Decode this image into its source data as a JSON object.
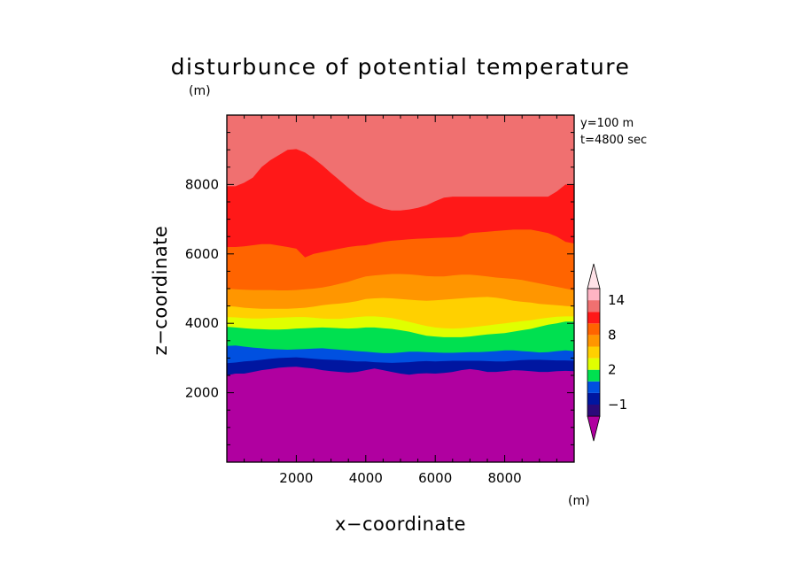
{
  "chart_data": {
    "type": "heatmap",
    "subtype": "filled-contour",
    "title": "disturbunce of potential temperature",
    "title_unit": "(m)",
    "xlabel": "x−coordinate",
    "ylabel": "z−coordinate",
    "annotations": [
      "y=100 m",
      "t=4800 sec"
    ],
    "xlim": [
      0,
      10000
    ],
    "ylim": [
      0,
      10000
    ],
    "x_ticks": [
      2000,
      4000,
      6000,
      8000
    ],
    "y_ticks": [
      2000,
      4000,
      6000,
      8000
    ],
    "colorbar": {
      "unit": "(m)",
      "levels": [
        -2,
        -1,
        0,
        1,
        2,
        4,
        6,
        8,
        10,
        12,
        14,
        16
      ],
      "colors": [
        "#b000a0",
        "#2b0a7a",
        "#0016a0",
        "#0050e0",
        "#00e050",
        "#e0ff00",
        "#ffd000",
        "#ff9600",
        "#ff6400",
        "#ff1818",
        "#f07070",
        "#ffb4c4",
        "#ffe2e8"
      ],
      "labeled_ticks": [
        -1,
        2,
        8,
        14
      ],
      "extend": "both"
    },
    "contour_x": [
      0,
      250,
      500,
      750,
      1000,
      1250,
      1500,
      1750,
      2000,
      2250,
      2500,
      2750,
      3000,
      3250,
      3500,
      3750,
      4000,
      4250,
      4500,
      4750,
      5000,
      5250,
      5500,
      5750,
      6000,
      6250,
      6500,
      6750,
      7000,
      7250,
      7500,
      7750,
      8000,
      8250,
      8500,
      8750,
      9000,
      9250,
      9500,
      9750,
      10000
    ],
    "band_boundaries": [
      {
        "below": -2,
        "above": -1,
        "z": [
          2500,
          2550,
          2550,
          2600,
          2650,
          2680,
          2720,
          2740,
          2750,
          2720,
          2700,
          2650,
          2620,
          2600,
          2580,
          2600,
          2650,
          2700,
          2650,
          2600,
          2550,
          2520,
          2550,
          2560,
          2550,
          2570,
          2600,
          2650,
          2680,
          2650,
          2600,
          2600,
          2620,
          2650,
          2640,
          2620,
          2600,
          2600,
          2620,
          2630,
          2620
        ]
      },
      {
        "below": -1,
        "above": 0,
        "z": [
          2850,
          2870,
          2900,
          2920,
          2950,
          2980,
          3000,
          3010,
          3020,
          3000,
          2980,
          2960,
          2950,
          2940,
          2920,
          2900,
          2900,
          2880,
          2870,
          2860,
          2870,
          2880,
          2900,
          2910,
          2900,
          2910,
          2920,
          2920,
          2920,
          2920,
          2910,
          2900,
          2900,
          2920,
          2940,
          2950,
          2950,
          2940,
          2930,
          2930,
          2920
        ]
      },
      {
        "below": 0,
        "above": 1,
        "z": [
          3350,
          3360,
          3330,
          3300,
          3280,
          3260,
          3250,
          3240,
          3250,
          3260,
          3270,
          3280,
          3260,
          3240,
          3220,
          3200,
          3180,
          3160,
          3140,
          3140,
          3160,
          3180,
          3180,
          3170,
          3160,
          3150,
          3150,
          3160,
          3170,
          3170,
          3180,
          3200,
          3220,
          3220,
          3200,
          3180,
          3160,
          3170,
          3200,
          3220,
          3200
        ]
      },
      {
        "below": 1,
        "above": 2,
        "z": [
          3900,
          3880,
          3860,
          3840,
          3830,
          3820,
          3820,
          3830,
          3850,
          3860,
          3870,
          3880,
          3870,
          3860,
          3850,
          3860,
          3880,
          3880,
          3860,
          3840,
          3800,
          3760,
          3700,
          3640,
          3620,
          3600,
          3600,
          3600,
          3620,
          3650,
          3680,
          3700,
          3720,
          3760,
          3800,
          3840,
          3900,
          3960,
          4000,
          4050,
          4050
        ]
      },
      {
        "below": 2,
        "above": 4,
        "z": [
          4180,
          4170,
          4150,
          4140,
          4140,
          4150,
          4160,
          4170,
          4180,
          4180,
          4160,
          4140,
          4130,
          4130,
          4150,
          4180,
          4200,
          4200,
          4180,
          4150,
          4100,
          4040,
          3980,
          3920,
          3880,
          3860,
          3850,
          3860,
          3880,
          3910,
          3940,
          3970,
          4000,
          4030,
          4060,
          4090,
          4130,
          4160,
          4190,
          4200,
          4200
        ]
      },
      {
        "below": 4,
        "above": 6,
        "z": [
          4500,
          4480,
          4450,
          4430,
          4420,
          4420,
          4420,
          4420,
          4430,
          4450,
          4480,
          4520,
          4550,
          4570,
          4600,
          4640,
          4700,
          4720,
          4730,
          4720,
          4700,
          4680,
          4660,
          4650,
          4660,
          4680,
          4700,
          4720,
          4740,
          4750,
          4760,
          4740,
          4700,
          4650,
          4620,
          4600,
          4560,
          4540,
          4520,
          4500,
          4480
        ]
      },
      {
        "below": 6,
        "above": 8,
        "z": [
          5000,
          4980,
          4970,
          4960,
          4960,
          4960,
          4950,
          4950,
          4960,
          4980,
          5000,
          5030,
          5080,
          5140,
          5200,
          5280,
          5350,
          5380,
          5400,
          5420,
          5420,
          5410,
          5390,
          5360,
          5350,
          5350,
          5380,
          5400,
          5400,
          5380,
          5350,
          5320,
          5300,
          5280,
          5250,
          5200,
          5150,
          5100,
          5050,
          5000,
          4950
        ]
      },
      {
        "below": 8,
        "above": 10,
        "z": [
          6200,
          6200,
          6220,
          6250,
          6280,
          6280,
          6240,
          6200,
          6150,
          5900,
          6000,
          6050,
          6100,
          6150,
          6200,
          6230,
          6250,
          6300,
          6350,
          6380,
          6400,
          6420,
          6440,
          6450,
          6460,
          6470,
          6480,
          6500,
          6600,
          6620,
          6640,
          6660,
          6680,
          6700,
          6700,
          6700,
          6650,
          6600,
          6500,
          6350,
          6300
        ]
      },
      {
        "below": 10,
        "above": 12,
        "z": [
          7950,
          7950,
          8050,
          8200,
          8500,
          8700,
          8850,
          9000,
          9020,
          8920,
          8750,
          8550,
          8330,
          8120,
          7900,
          7700,
          7520,
          7400,
          7300,
          7250,
          7250,
          7280,
          7330,
          7400,
          7520,
          7620,
          7650,
          7650,
          7650,
          7650,
          7650,
          7650,
          7650,
          7650,
          7650,
          7650,
          7650,
          7650,
          7800,
          8000,
          8000
        ]
      }
    ]
  }
}
